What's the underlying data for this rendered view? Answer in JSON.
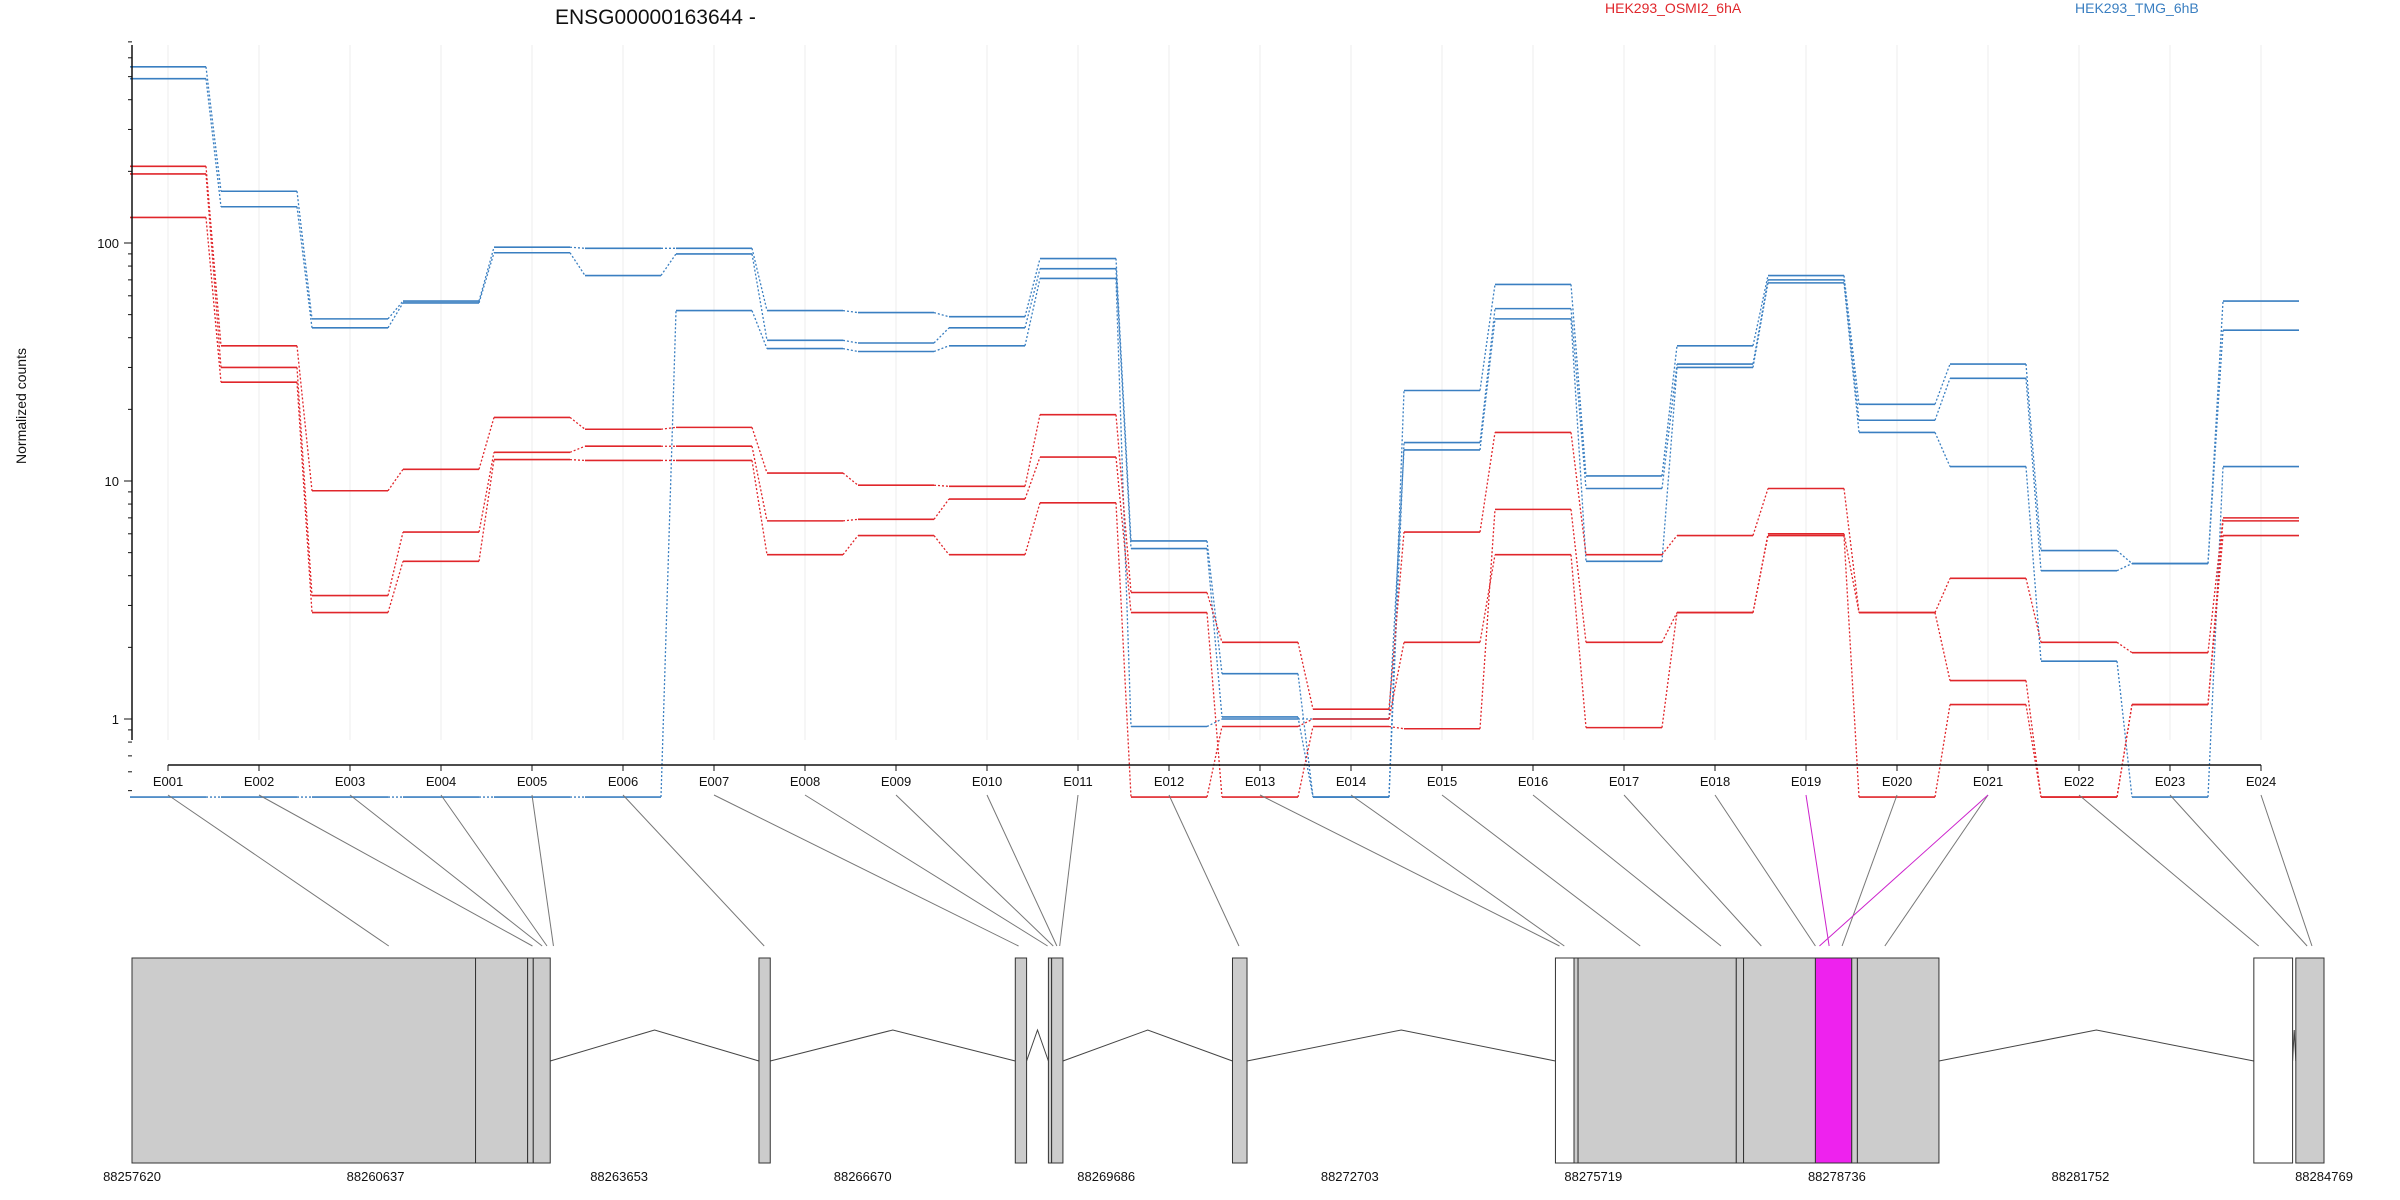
{
  "chart_data": {
    "type": "line",
    "title": "ENSG00000163644 -",
    "ylabel": "Normalized counts",
    "yscale": "log",
    "ylim": [
      0.5,
      750
    ],
    "yticks": [
      1,
      10,
      100
    ],
    "grid": "vertical-light",
    "legend_placement": "top-right",
    "exons": [
      "E001",
      "E002",
      "E003",
      "E004",
      "E005",
      "E006",
      "E007",
      "E008",
      "E009",
      "E010",
      "E011",
      "E012",
      "E013",
      "E014",
      "E015",
      "E016",
      "E017",
      "E018",
      "E019",
      "E020",
      "E021",
      "E022",
      "E023",
      "E024"
    ],
    "highlighted_exon": "E019",
    "legend": [
      {
        "label": "HEK293_OSMI2_6hA",
        "color": "#e0262b"
      },
      {
        "label": "HEK293_TMG_6hB",
        "color": "#3a7fc1"
      }
    ],
    "series": [
      {
        "group": "blue",
        "color": "#3a7fc1",
        "values": [
          550,
          165,
          48,
          57,
          96,
          95,
          95,
          52,
          51,
          49,
          86,
          5.6,
          1.55,
          0.47,
          24,
          67,
          10.5,
          37,
          73,
          21,
          31,
          5.1,
          4.5,
          57
        ]
      },
      {
        "group": "blue",
        "color": "#3a7fc1",
        "values": [
          490,
          142,
          44,
          56,
          91,
          73,
          90,
          39,
          38,
          44,
          78,
          5.2,
          1.02,
          0.47,
          14.5,
          53,
          9.3,
          31,
          70,
          18,
          27,
          4.2,
          4.5,
          43
        ]
      },
      {
        "group": "blue",
        "color": "#3a7fc1",
        "values": [
          0.47,
          0.47,
          0.47,
          0.47,
          0.47,
          0.47,
          52,
          36,
          35,
          37,
          71,
          0.93,
          1.0,
          1.0,
          13.5,
          48,
          4.6,
          30,
          68,
          16,
          11.5,
          1.75,
          0.47,
          11.5
        ]
      },
      {
        "group": "red",
        "color": "#e0262b",
        "values": [
          210,
          37,
          9.1,
          11.2,
          18.5,
          16.5,
          16.8,
          10.8,
          9.6,
          9.5,
          19,
          3.4,
          2.1,
          1.1,
          6.1,
          16,
          4.9,
          5.9,
          9.3,
          2.8,
          3.9,
          2.1,
          1.9,
          7.0
        ]
      },
      {
        "group": "red",
        "color": "#e0262b",
        "values": [
          195,
          30,
          3.3,
          6.1,
          13.2,
          14,
          14,
          6.8,
          6.9,
          8.4,
          12.6,
          2.8,
          0.47,
          0.93,
          0.91,
          7.6,
          2.1,
          2.8,
          6.0,
          2.8,
          1.45,
          0.47,
          1.15,
          6.8
        ]
      },
      {
        "group": "red",
        "color": "#e0262b",
        "values": [
          128,
          26,
          2.8,
          4.6,
          12.3,
          12.2,
          12.2,
          4.9,
          5.9,
          4.9,
          8.1,
          0.47,
          0.93,
          1.0,
          2.1,
          4.9,
          0.92,
          2.8,
          5.9,
          0.47,
          1.15,
          0.47,
          1.15,
          5.9
        ]
      }
    ],
    "genome_axis": {
      "tick_labels": [
        "88257620",
        "88260637",
        "88263653",
        "88266670",
        "88269686",
        "88272703",
        "88275719",
        "88278736",
        "88281752",
        "88284769"
      ],
      "range": [
        88257620,
        88284769
      ],
      "exon_blocks": [
        {
          "start": 88257620,
          "end": 88261875,
          "fill": "#cccccc"
        },
        {
          "start": 88261875,
          "end": 88262520,
          "fill": "#cccccc"
        },
        {
          "start": 88262520,
          "end": 88262590,
          "fill": "#cccccc"
        },
        {
          "start": 88262590,
          "end": 88262800,
          "fill": "#cccccc"
        },
        {
          "start": 88265385,
          "end": 88265525,
          "fill": "#cccccc"
        },
        {
          "start": 88268560,
          "end": 88268700,
          "fill": "#cccccc"
        },
        {
          "start": 88268970,
          "end": 88269010,
          "fill": "#cccccc"
        },
        {
          "start": 88269010,
          "end": 88269150,
          "fill": "#cccccc"
        },
        {
          "start": 88271250,
          "end": 88271430,
          "fill": "#cccccc"
        },
        {
          "start": 88275250,
          "end": 88275480,
          "fill": "#ffffff"
        },
        {
          "start": 88275480,
          "end": 88275530,
          "fill": "#cccccc"
        },
        {
          "start": 88275530,
          "end": 88277490,
          "fill": "#cccccc"
        },
        {
          "start": 88277490,
          "end": 88277580,
          "fill": "#cccccc"
        },
        {
          "start": 88277580,
          "end": 88278470,
          "fill": "#cccccc"
        },
        {
          "start": 88278470,
          "end": 88278920,
          "fill": "#ee22ee"
        },
        {
          "start": 88278920,
          "end": 88278990,
          "fill": "#cccccc"
        },
        {
          "start": 88278990,
          "end": 88280000,
          "fill": "#cccccc"
        },
        {
          "start": 88283900,
          "end": 88284380,
          "fill": "#ffffff"
        },
        {
          "start": 88284420,
          "end": 88284769,
          "fill": "#cccccc"
        }
      ],
      "exon_anchors": [
        88260800,
        88262580,
        88262700,
        88262760,
        88262840,
        88265450,
        88268600,
        88268960,
        88269030,
        88269075,
        88269110,
        88271330,
        88275300,
        88275360,
        88276300,
        88277300,
        88277800,
        88278470,
        88278640,
        88278800,
        88279330,
        88283960,
        88284560,
        88284620
      ],
      "introns": [
        {
          "from": 88262800,
          "to": 88265385
        },
        {
          "from": 88265525,
          "to": 88268560
        },
        {
          "from": 88268700,
          "to": 88268970
        },
        {
          "from": 88269150,
          "to": 88271250
        },
        {
          "from": 88271430,
          "to": 88275250
        },
        {
          "from": 88280000,
          "to": 88283900
        },
        {
          "from": 88284380,
          "to": 88284420
        }
      ]
    }
  }
}
